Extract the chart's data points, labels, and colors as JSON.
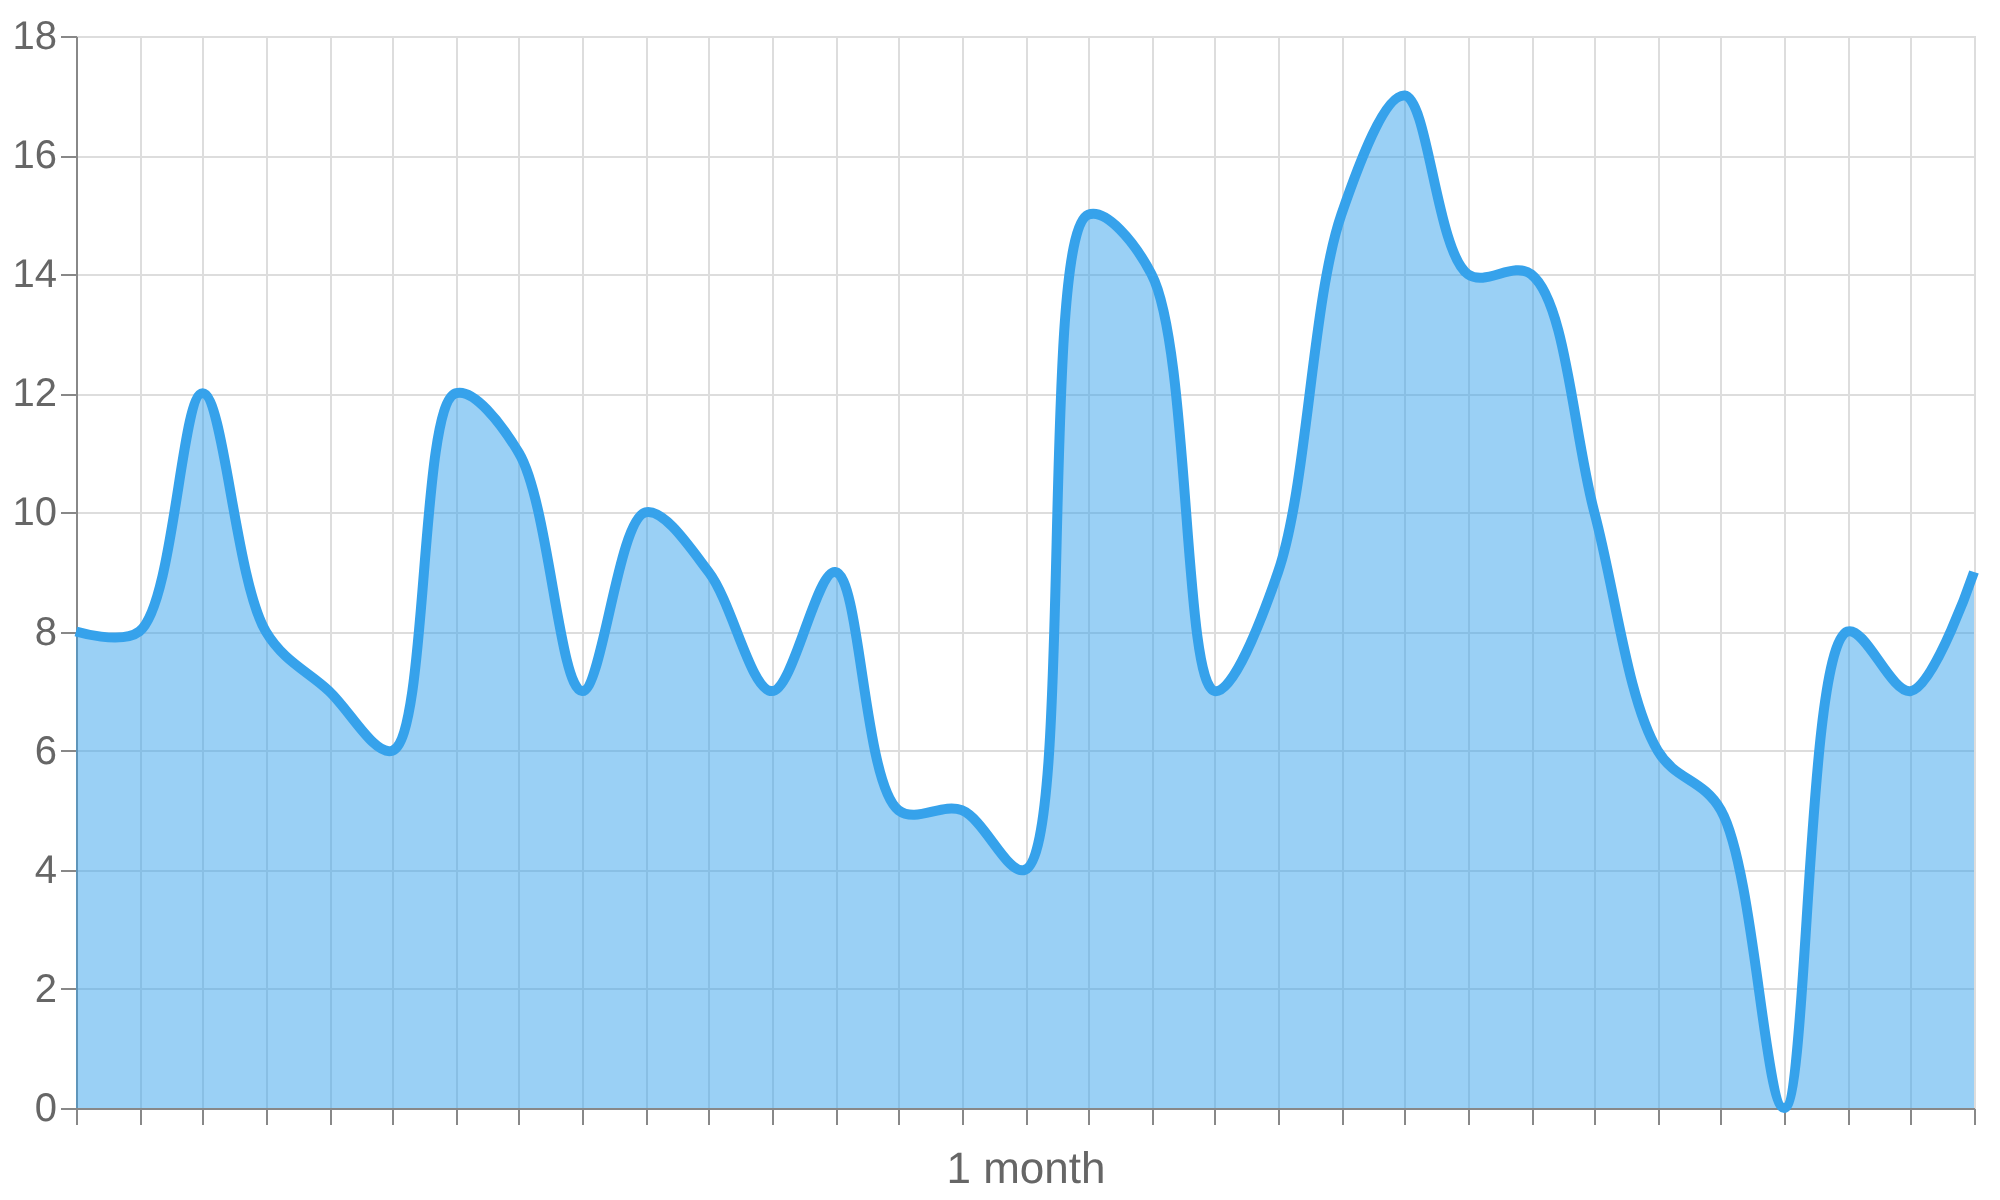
{
  "chart_data": {
    "type": "area",
    "xlabel": "1 month",
    "categories": [
      null,
      null,
      null,
      null,
      null,
      null,
      null,
      null,
      null,
      null,
      null,
      null,
      null,
      null,
      null,
      null,
      null,
      null,
      null,
      null,
      null,
      null,
      null,
      null,
      null,
      null,
      null,
      null,
      null,
      null,
      null
    ],
    "series": [
      {
        "color": "#36a2eb",
        "values": [
          8,
          8,
          12,
          8,
          7,
          6,
          12,
          11,
          7,
          10,
          9,
          7,
          9,
          5,
          5,
          4,
          15,
          14,
          7,
          9,
          15,
          17,
          14,
          14,
          10,
          6,
          5,
          0,
          8,
          7,
          9
        ]
      }
    ],
    "ylim": [
      0,
      18
    ],
    "yticks": [
      0,
      2,
      4,
      6,
      8,
      10,
      12,
      14,
      16,
      18
    ],
    "grid": true,
    "marker": "none",
    "line_style": "solid"
  }
}
